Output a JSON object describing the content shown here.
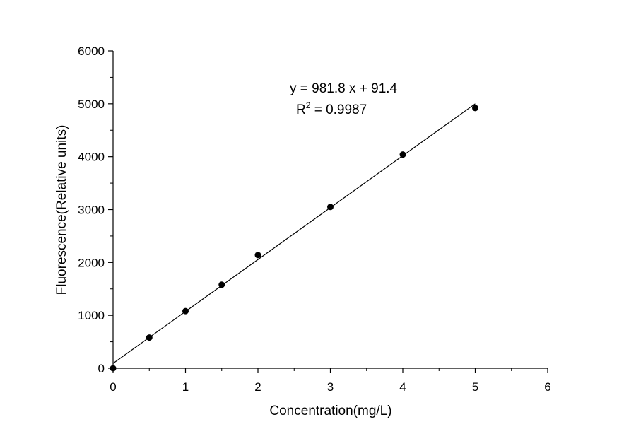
{
  "chart_data": {
    "type": "scatter",
    "xlabel": "Concentration(mg/L)",
    "ylabel": "Fluorescence(Relative units)",
    "xlim": [
      0,
      6
    ],
    "ylim": [
      0,
      6000
    ],
    "x_ticks": [
      0,
      1,
      2,
      3,
      4,
      5,
      6
    ],
    "y_ticks": [
      0,
      1000,
      2000,
      3000,
      4000,
      5000,
      6000
    ],
    "grid": false,
    "series": [
      {
        "points": [
          {
            "x": 0,
            "y": 0
          },
          {
            "x": 0.5,
            "y": 580
          },
          {
            "x": 1,
            "y": 1080
          },
          {
            "x": 1.5,
            "y": 1580
          },
          {
            "x": 2,
            "y": 2140
          },
          {
            "x": 3,
            "y": 3050
          },
          {
            "x": 4,
            "y": 4040
          },
          {
            "x": 5,
            "y": 4920
          }
        ]
      }
    ],
    "fit": {
      "slope": 981.8,
      "intercept": 91.4,
      "x_range": [
        0,
        5
      ],
      "equation": "y = 981.8 x + 91.4",
      "r2_label": "R",
      "r2_superscript": "2",
      "r2_value": " = 0.9987"
    }
  }
}
